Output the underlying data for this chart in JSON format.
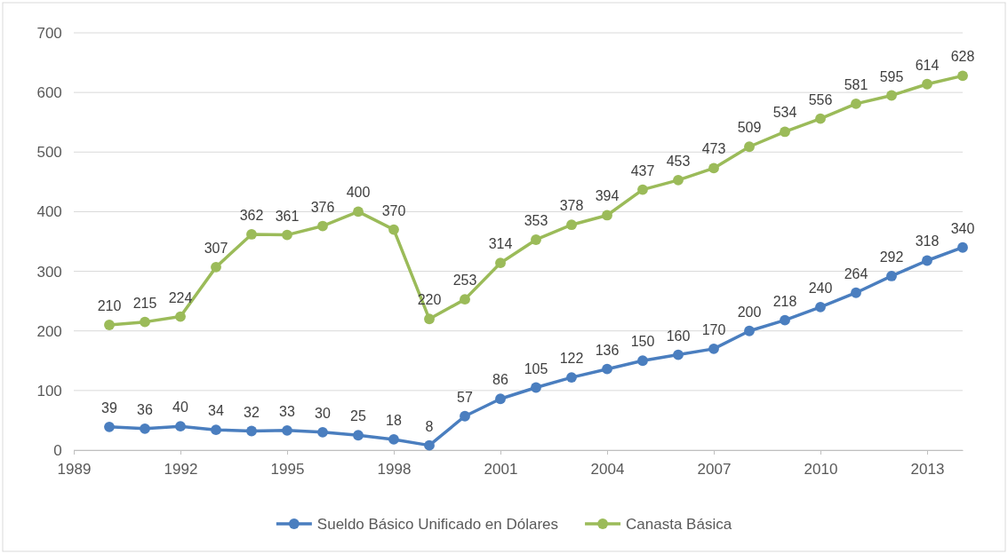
{
  "chart_data": {
    "type": "line",
    "x": [
      1990,
      1991,
      1992,
      1993,
      1994,
      1995,
      1996,
      1997,
      1998,
      1999,
      2000,
      2001,
      2002,
      2003,
      2004,
      2005,
      2006,
      2007,
      2008,
      2009,
      2010,
      2011,
      2012,
      2013,
      2014
    ],
    "series": [
      {
        "name": "Sueldo Básico Unificado en Dólares",
        "color": "#4a7ebf",
        "values": [
          39,
          36,
          40,
          34,
          32,
          33,
          30,
          25,
          18,
          8,
          57,
          86,
          105,
          122,
          136,
          150,
          160,
          170,
          200,
          218,
          240,
          264,
          292,
          318,
          340
        ]
      },
      {
        "name": "Canasta Básica",
        "color": "#9bbb59",
        "values": [
          210,
          215,
          224,
          307,
          362,
          361,
          376,
          400,
          370,
          220,
          253,
          314,
          353,
          378,
          394,
          437,
          453,
          473,
          509,
          534,
          556,
          581,
          595,
          614,
          628
        ]
      }
    ],
    "xlim": [
      1989,
      2014
    ],
    "xticks": [
      1989,
      1992,
      1995,
      1998,
      2001,
      2004,
      2007,
      2010,
      2013
    ],
    "ylim": [
      0,
      700
    ],
    "yticks": [
      0,
      100,
      200,
      300,
      400,
      500,
      600,
      700
    ],
    "grid": "y",
    "legend": "bottom",
    "marker": "circle",
    "line_style": "solid",
    "data_labels": true
  }
}
